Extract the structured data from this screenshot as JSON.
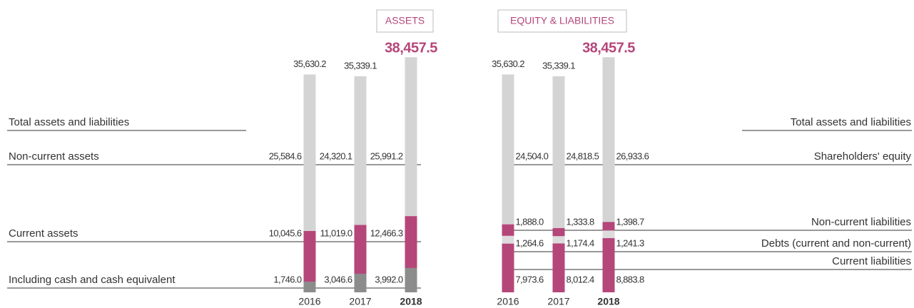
{
  "chart_data": [
    {
      "type": "stacked-bar",
      "title": "ASSETS",
      "categories": [
        "2016",
        "2017",
        "2018"
      ],
      "ylim": [
        0,
        40000
      ],
      "totals": {
        "name": "Total assets and liabilities",
        "values": [
          35630.2,
          35339.1,
          38457.5
        ],
        "value_labels": [
          "35,630.2",
          "35,339.1",
          "38,457.5"
        ]
      },
      "series": [
        {
          "name": "Current assets",
          "color": "#b5467a",
          "values": [
            10045.6,
            11019.0,
            12466.3
          ],
          "value_labels": [
            "10,045.6",
            "11,019.0",
            "12,466.3"
          ]
        },
        {
          "name": "Non-current assets",
          "color": "#d4d4d4",
          "values": [
            25584.6,
            24320.1,
            25991.2
          ],
          "value_labels": [
            "25,584.6",
            "24,320.1",
            "25,991.2"
          ]
        }
      ],
      "overlay": [
        {
          "name": "Including cash and cash equivalent",
          "color": "#8c8c8c",
          "values": [
            1746.0,
            3046.6,
            3992.0
          ],
          "value_labels": [
            "1,746.0",
            "3,046.6",
            "3,992.0"
          ]
        }
      ]
    },
    {
      "type": "stacked-bar",
      "title": "EQUITY & LIABILITIES",
      "categories": [
        "2016",
        "2017",
        "2018"
      ],
      "ylim": [
        0,
        40000
      ],
      "totals": {
        "name": "Total assets and liabilities",
        "values": [
          35630.2,
          35339.1,
          38457.5
        ],
        "value_labels": [
          "35,630.2",
          "35,339.1",
          "38,457.5"
        ]
      },
      "series": [
        {
          "name": "Current liabilities",
          "color": "#b5467a",
          "values": [
            7973.6,
            8012.4,
            8883.8
          ],
          "value_labels": [
            "7,973.6",
            "8,012.4",
            "8,883.8"
          ]
        },
        {
          "name": "Debts (current and non-current)",
          "color": "#dcdcdc",
          "values": [
            1264.6,
            1174.4,
            1241.3
          ],
          "value_labels": [
            "1,264.6",
            "1,174.4",
            "1,241.3"
          ]
        },
        {
          "name": "Non-current liabilities",
          "color": "#b5467a",
          "values": [
            1888.0,
            1333.8,
            1398.7
          ],
          "value_labels": [
            "1,888.0",
            "1,333.8",
            "1,398.7"
          ]
        },
        {
          "name": "Shareholders' equity",
          "color": "#d4d4d4",
          "values": [
            24504.0,
            24818.5,
            26933.6
          ],
          "value_labels": [
            "24,504.0",
            "24,818.5",
            "26,933.6"
          ]
        }
      ],
      "overlay": []
    }
  ]
}
